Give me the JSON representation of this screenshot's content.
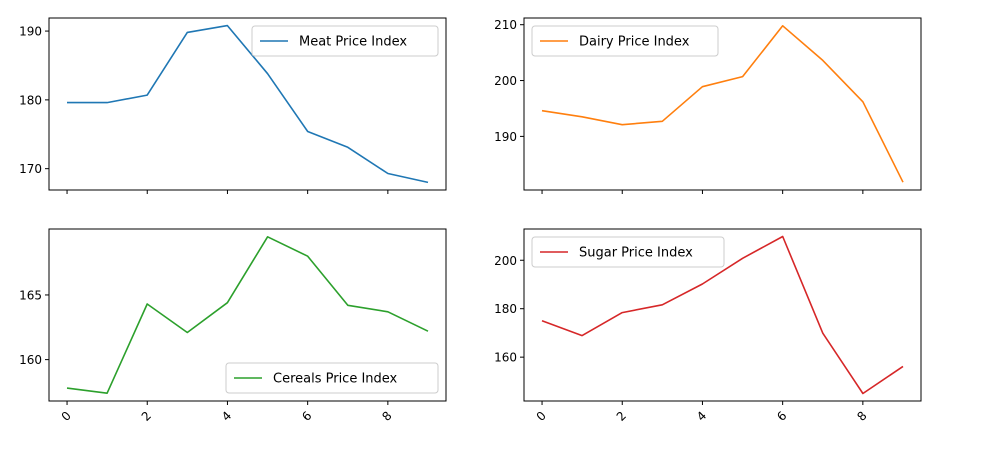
{
  "chart_data": [
    {
      "type": "line",
      "x": [
        0,
        1,
        2,
        3,
        4,
        5,
        6,
        7,
        8,
        9
      ],
      "series": [
        {
          "name": "Meat Price Index",
          "color": "#1f77b4",
          "values": [
            179.6,
            179.6,
            180.7,
            189.8,
            190.8,
            183.8,
            175.4,
            173.1,
            169.3,
            168.0
          ]
        }
      ],
      "xlim": [
        -0.45,
        9.45
      ],
      "ylim": [
        166.9,
        191.9
      ],
      "yticks": [
        170,
        180,
        190
      ],
      "xticks": [
        0,
        2,
        4,
        6,
        8
      ],
      "show_xtick_labels": false,
      "legend_loc": "upper right",
      "grid": false
    },
    {
      "type": "line",
      "x": [
        0,
        1,
        2,
        3,
        4,
        5,
        6,
        7,
        8,
        9
      ],
      "series": [
        {
          "name": "Dairy Price Index",
          "color": "#ff7f0e",
          "values": [
            194.6,
            193.5,
            192.1,
            192.7,
            198.9,
            200.7,
            209.8,
            203.6,
            196.2,
            181.8
          ]
        }
      ],
      "xlim": [
        -0.45,
        9.45
      ],
      "ylim": [
        180.4,
        211.2
      ],
      "yticks": [
        190,
        200,
        210
      ],
      "xticks": [
        0,
        2,
        4,
        6,
        8
      ],
      "show_xtick_labels": false,
      "legend_loc": "upper left",
      "grid": false
    },
    {
      "type": "line",
      "x": [
        0,
        1,
        2,
        3,
        4,
        5,
        6,
        7,
        8,
        9
      ],
      "series": [
        {
          "name": "Cereals Price Index",
          "color": "#2ca02c",
          "values": [
            157.8,
            157.4,
            164.3,
            162.1,
            164.4,
            169.5,
            168.0,
            164.2,
            163.7,
            162.2
          ]
        }
      ],
      "xlim": [
        -0.45,
        9.45
      ],
      "ylim": [
        156.8,
        170.1
      ],
      "yticks": [
        160,
        165
      ],
      "xticks": [
        0,
        2,
        4,
        6,
        8
      ],
      "show_xtick_labels": true,
      "legend_loc": "lower right",
      "grid": false
    },
    {
      "type": "line",
      "x": [
        0,
        1,
        2,
        3,
        4,
        5,
        6,
        7,
        8,
        9
      ],
      "series": [
        {
          "name": "Sugar Price Index",
          "color": "#d62728",
          "values": [
            175.0,
            168.9,
            178.4,
            181.6,
            190.2,
            200.8,
            209.8,
            169.9,
            145.0,
            156.2
          ]
        }
      ],
      "xlim": [
        -0.45,
        9.45
      ],
      "ylim": [
        141.9,
        212.9
      ],
      "yticks": [
        160,
        180,
        200
      ],
      "xticks": [
        0,
        2,
        4,
        6,
        8
      ],
      "show_xtick_labels": true,
      "legend_loc": "upper left",
      "grid": false
    }
  ]
}
